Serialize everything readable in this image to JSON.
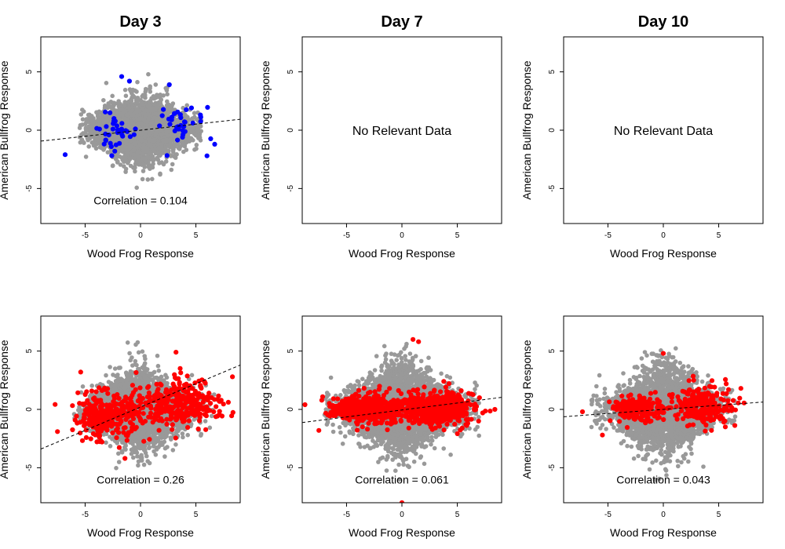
{
  "colors": {
    "background_points": "#999999",
    "day3_highlight_top": "#0000ff",
    "highlight_bottom": "#ff0000",
    "fit_line": "#000000",
    "frame": "#000000"
  },
  "columns": [
    {
      "title": "Day 3"
    },
    {
      "title": "Day 7"
    },
    {
      "title": "Day 10"
    }
  ],
  "chart_data": [
    {
      "type": "scatter",
      "row": 0,
      "col": 0,
      "xlabel": "Wood Frog Response",
      "ylabel": "American Bullfrog Response",
      "xlim": [
        -9,
        9
      ],
      "ylim": [
        -8,
        8
      ],
      "xticks": [
        -5,
        0,
        5
      ],
      "yticks": [
        -5,
        0,
        5
      ],
      "correlation_label": "Correlation =  0.104",
      "no_data_label": "",
      "fit": {
        "slope": 0.104,
        "intercept": 0.0
      },
      "background": {
        "n": 2600,
        "spread_x": 2.2,
        "spread_y": 1.1,
        "gap": 0,
        "xrange": [
          -5.5,
          5.5
        ],
        "seed": 3
      },
      "highlight": {
        "color_key": "day3_highlight_top",
        "n": 70,
        "seed": 13,
        "clusters": [
          {
            "cx": -2.5,
            "cy": -0.2,
            "sx": 1.0,
            "sy": 0.8
          },
          {
            "cx": 3.0,
            "cy": 0.6,
            "sx": 1.3,
            "sy": 1.0
          }
        ],
        "extra": [
          [
            -1.7,
            4.6
          ],
          [
            2.6,
            3.9
          ],
          [
            6.7,
            -1.2
          ],
          [
            6.0,
            -2.2
          ],
          [
            -6.8,
            -2.1
          ],
          [
            -1.0,
            4.2
          ]
        ]
      },
      "grid": false
    },
    {
      "type": "scatter",
      "row": 0,
      "col": 1,
      "xlabel": "Wood Frog Response",
      "ylabel": "American Bullfrog Response",
      "xlim": [
        -9,
        9
      ],
      "ylim": [
        -8,
        8
      ],
      "xticks": [
        -5,
        0,
        5
      ],
      "yticks": [
        -5,
        0,
        5
      ],
      "correlation_label": "",
      "no_data_label": "No Relevant Data",
      "fit": null,
      "background": null,
      "highlight": null,
      "grid": false
    },
    {
      "type": "scatter",
      "row": 0,
      "col": 2,
      "xlabel": "Wood Frog Response",
      "ylabel": "American Bullfrog Response",
      "xlim": [
        -9,
        9
      ],
      "ylim": [
        -8,
        8
      ],
      "xticks": [
        -5,
        0,
        5
      ],
      "yticks": [
        -5,
        0,
        5
      ],
      "correlation_label": "",
      "no_data_label": "No Relevant Data",
      "fit": null,
      "background": null,
      "highlight": null,
      "grid": false
    },
    {
      "type": "scatter",
      "row": 1,
      "col": 0,
      "xlabel": "Wood Frog Response",
      "ylabel": "American Bullfrog Response",
      "xlim": [
        -9,
        9
      ],
      "ylim": [
        -8,
        8
      ],
      "xticks": [
        -5,
        0,
        5
      ],
      "yticks": [
        -5,
        0,
        5
      ],
      "correlation_label": "Correlation =  0.26",
      "no_data_label": "",
      "fit": {
        "slope": 0.4,
        "intercept": 0.2
      },
      "background": {
        "n": 2600,
        "spread_x": 2.2,
        "spread_y": 1.3,
        "gap": 0,
        "xrange": [
          -6,
          7
        ],
        "seed": 21
      },
      "highlight": {
        "color_key": "highlight_bottom",
        "n": 650,
        "seed": 29,
        "clusters": [
          {
            "cx": -3.0,
            "cy": -0.5,
            "sx": 1.4,
            "sy": 0.9
          },
          {
            "cx": 3.5,
            "cy": 0.6,
            "sx": 1.8,
            "sy": 1.0
          }
        ],
        "extra": [
          [
            -5.4,
            3.2
          ],
          [
            3.2,
            4.9
          ],
          [
            -1.4,
            -4.2
          ],
          [
            8.3,
            2.8
          ],
          [
            -7.5,
            -1.9
          ]
        ]
      },
      "grid": false
    },
    {
      "type": "scatter",
      "row": 1,
      "col": 1,
      "xlabel": "Wood Frog Response",
      "ylabel": "American Bullfrog Response",
      "xlim": [
        -9,
        9
      ],
      "ylim": [
        -8,
        8
      ],
      "xticks": [
        -5,
        0,
        5
      ],
      "yticks": [
        -5,
        0,
        5
      ],
      "correlation_label": "Correlation =  0.061",
      "no_data_label": "",
      "fit": {
        "slope": 0.12,
        "intercept": -0.05
      },
      "background": {
        "n": 3600,
        "spread_x": 2.5,
        "spread_y": 1.4,
        "gap": 0,
        "xrange": [
          -7,
          7
        ],
        "seed": 41
      },
      "highlight": {
        "color_key": "highlight_bottom",
        "n": 1100,
        "seed": 47,
        "clusters": [
          {
            "cx": -3.2,
            "cy": 0.0,
            "sx": 1.6,
            "sy": 0.6
          },
          {
            "cx": 3.3,
            "cy": 0.1,
            "sx": 1.6,
            "sy": 0.7
          }
        ],
        "extra": [
          [
            -7.5,
            -1.8
          ],
          [
            7.0,
            1.0
          ],
          [
            1.0,
            6.0
          ],
          [
            0.0,
            -8.0
          ],
          [
            1.5,
            5.8
          ]
        ]
      },
      "grid": false
    },
    {
      "type": "scatter",
      "row": 1,
      "col": 2,
      "xlabel": "Wood Frog Response",
      "ylabel": "American Bullfrog Response",
      "xlim": [
        -9,
        9
      ],
      "ylim": [
        -8,
        8
      ],
      "xticks": [
        -5,
        0,
        5
      ],
      "yticks": [
        -5,
        0,
        5
      ],
      "correlation_label": "Correlation =  0.043",
      "no_data_label": "",
      "fit": {
        "slope": 0.07,
        "intercept": 0.0
      },
      "background": {
        "n": 3000,
        "spread_x": 2.3,
        "spread_y": 1.4,
        "gap": 0,
        "xrange": [
          -6.5,
          6.5
        ],
        "seed": 61
      },
      "highlight": {
        "color_key": "highlight_bottom",
        "n": 520,
        "seed": 67,
        "clusters": [
          {
            "cx": -2.3,
            "cy": 0.1,
            "sx": 1.0,
            "sy": 0.45
          },
          {
            "cx": 3.3,
            "cy": 0.3,
            "sx": 1.5,
            "sy": 0.8
          }
        ],
        "extra": [
          [
            -7.3,
            -0.2
          ],
          [
            7.0,
            1.8
          ],
          [
            -5.5,
            -2.2
          ],
          [
            0.0,
            4.8
          ],
          [
            5.6,
            -1.5
          ]
        ]
      },
      "grid": false
    }
  ]
}
